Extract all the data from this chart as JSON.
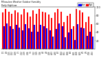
{
  "title": "Milwaukee Weather Outdoor Humidity",
  "subtitle": "Daily High/Low",
  "high_color": "#ff0000",
  "low_color": "#0000ff",
  "background_color": "#ffffff",
  "ylim": [
    0,
    100
  ],
  "n_bars": 30,
  "high_values": [
    88,
    95,
    90,
    85,
    92,
    88,
    82,
    95,
    88,
    78,
    93,
    85,
    95,
    90,
    88,
    82,
    75,
    88,
    95,
    90,
    65,
    80,
    85,
    55,
    95,
    92,
    88,
    65,
    78,
    60
  ],
  "low_values": [
    55,
    62,
    55,
    48,
    58,
    52,
    45,
    60,
    50,
    42,
    58,
    42,
    58,
    55,
    50,
    45,
    30,
    48,
    62,
    55,
    28,
    40,
    48,
    22,
    60,
    52,
    50,
    32,
    42,
    30
  ],
  "x_labels": [
    "1/1",
    "1/8",
    "1/15",
    "1/22",
    "1/29",
    "2/5",
    "2/12",
    "2/19",
    "2/26",
    "3/5",
    "3/12",
    "3/19",
    "3/26",
    "4/2",
    "4/9",
    "4/16",
    "4/23",
    "4/30",
    "5/7",
    "5/14",
    "5/21",
    "5/28",
    "6/4",
    "6/11",
    "6/18",
    "6/25",
    "7/2",
    "7/9",
    "7/16",
    "7/23"
  ],
  "yticks": [
    20,
    40,
    60,
    80,
    100
  ],
  "ytick_labels": [
    "20",
    "40",
    "60",
    "80",
    "100"
  ],
  "dotted_line_x": 23.5,
  "legend_labels": [
    "High",
    "Low"
  ]
}
